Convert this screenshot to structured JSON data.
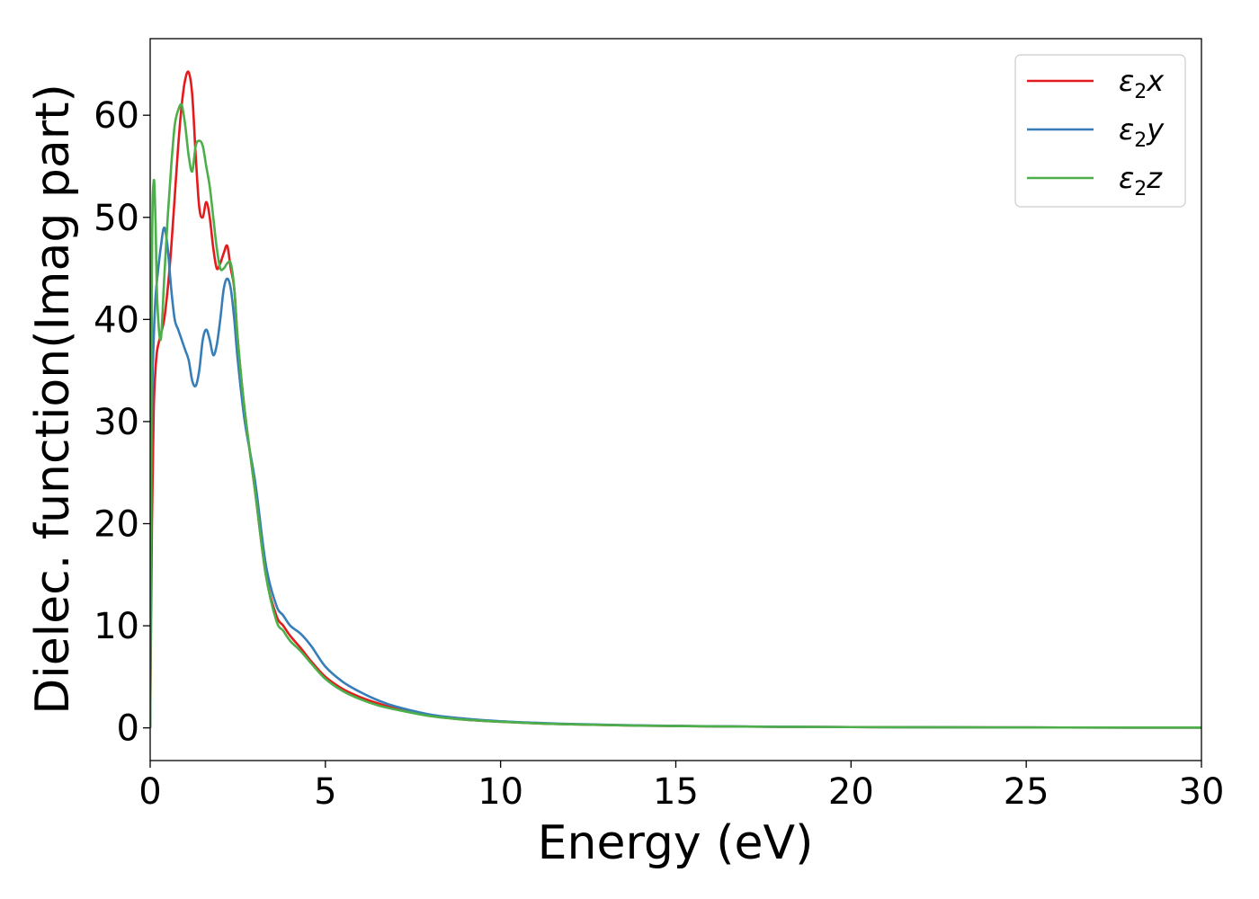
{
  "chart_data": {
    "type": "line",
    "xlabel": "Energy (eV)",
    "ylabel": "Dielec. function(Imag part)",
    "xlim": [
      0,
      30
    ],
    "ylim": [
      -3.2,
      67.5
    ],
    "xticks": [
      0,
      5,
      10,
      15,
      20,
      25,
      30
    ],
    "yticks": [
      0,
      10,
      20,
      30,
      40,
      50,
      60
    ],
    "grid": false,
    "legend_position": "top-right",
    "series": [
      {
        "name": "ε₂x",
        "legend": {
          "base": "ε",
          "sub": "2",
          "suffix": "x"
        },
        "color": "#e41a1c",
        "x": [
          0,
          0.05,
          0.1,
          0.15,
          0.2,
          0.3,
          0.4,
          0.5,
          0.6,
          0.7,
          0.8,
          0.9,
          1.0,
          1.1,
          1.2,
          1.3,
          1.4,
          1.5,
          1.6,
          1.7,
          1.8,
          1.9,
          2.0,
          2.1,
          2.2,
          2.3,
          2.4,
          2.5,
          2.7,
          3.0,
          3.3,
          3.6,
          3.8,
          4.0,
          4.3,
          4.6,
          5.0,
          5.5,
          6.0,
          6.5,
          7.0,
          8.0,
          9.0,
          10.0,
          11.0,
          12.0,
          14.0,
          16.0,
          18.0,
          20.0,
          22.0,
          25.0,
          28.0,
          30.0
        ],
        "values": [
          0,
          20,
          31,
          35,
          37,
          38.5,
          40,
          43,
          47,
          52,
          57,
          61,
          63.5,
          64.2,
          62,
          56,
          51,
          50,
          51.5,
          50,
          47,
          45,
          45.5,
          46.5,
          47.2,
          45,
          43,
          38,
          31,
          23,
          15,
          11,
          10,
          9,
          7.8,
          6.5,
          5,
          3.8,
          3,
          2.4,
          1.9,
          1.2,
          0.8,
          0.6,
          0.45,
          0.35,
          0.22,
          0.15,
          0.1,
          0.08,
          0.06,
          0.04,
          0.03,
          0.03
        ]
      },
      {
        "name": "ε₂y",
        "legend": {
          "base": "ε",
          "sub": "2",
          "suffix": "y"
        },
        "color": "#377eb8",
        "x": [
          0,
          0.05,
          0.1,
          0.15,
          0.2,
          0.3,
          0.4,
          0.5,
          0.6,
          0.7,
          0.8,
          0.9,
          1.0,
          1.1,
          1.2,
          1.3,
          1.4,
          1.5,
          1.6,
          1.7,
          1.8,
          1.9,
          2.0,
          2.1,
          2.2,
          2.3,
          2.4,
          2.5,
          2.7,
          3.0,
          3.3,
          3.6,
          3.8,
          4.0,
          4.3,
          4.6,
          5.0,
          5.5,
          6.0,
          6.5,
          7.0,
          8.0,
          9.0,
          10.0,
          11.0,
          12.0,
          14.0,
          16.0,
          18.0,
          20.0,
          22.0,
          25.0,
          28.0,
          30.0
        ],
        "values": [
          0,
          30,
          38,
          42,
          44,
          47,
          49,
          47,
          43,
          40,
          39,
          38,
          37,
          36,
          34,
          33.5,
          35,
          38,
          39,
          38,
          36.5,
          37.5,
          40,
          43,
          44,
          43,
          40,
          36,
          30,
          24,
          16,
          12,
          11,
          10,
          9.2,
          8,
          6,
          4.5,
          3.5,
          2.7,
          2.1,
          1.3,
          0.9,
          0.65,
          0.5,
          0.38,
          0.24,
          0.16,
          0.11,
          0.08,
          0.06,
          0.04,
          0.03,
          0.03
        ]
      },
      {
        "name": "ε₂z",
        "legend": {
          "base": "ε",
          "sub": "2",
          "suffix": "z"
        },
        "color": "#4daf4a",
        "x": [
          0,
          0.05,
          0.1,
          0.15,
          0.2,
          0.3,
          0.4,
          0.5,
          0.6,
          0.7,
          0.8,
          0.9,
          1.0,
          1.1,
          1.2,
          1.3,
          1.4,
          1.5,
          1.6,
          1.7,
          1.8,
          1.9,
          2.0,
          2.1,
          2.2,
          2.3,
          2.4,
          2.5,
          2.7,
          3.0,
          3.3,
          3.6,
          3.8,
          4.0,
          4.3,
          4.6,
          5.0,
          5.5,
          6.0,
          6.5,
          7.0,
          8.0,
          9.0,
          10.0,
          11.0,
          12.0,
          14.0,
          16.0,
          18.0,
          20.0,
          22.0,
          25.0,
          28.0,
          30.0
        ],
        "values": [
          0,
          45,
          53.5,
          50,
          42,
          38,
          44,
          50,
          55,
          59,
          60.5,
          61,
          59,
          56,
          54.5,
          57,
          57.5,
          57,
          55,
          53,
          50,
          47,
          45,
          45,
          45.5,
          45.5,
          43,
          38,
          31,
          23,
          15,
          10.5,
          9.5,
          8.5,
          7.5,
          6.3,
          4.8,
          3.6,
          2.8,
          2.2,
          1.8,
          1.15,
          0.8,
          0.6,
          0.45,
          0.35,
          0.22,
          0.15,
          0.1,
          0.08,
          0.06,
          0.04,
          0.03,
          0.03
        ]
      }
    ]
  }
}
